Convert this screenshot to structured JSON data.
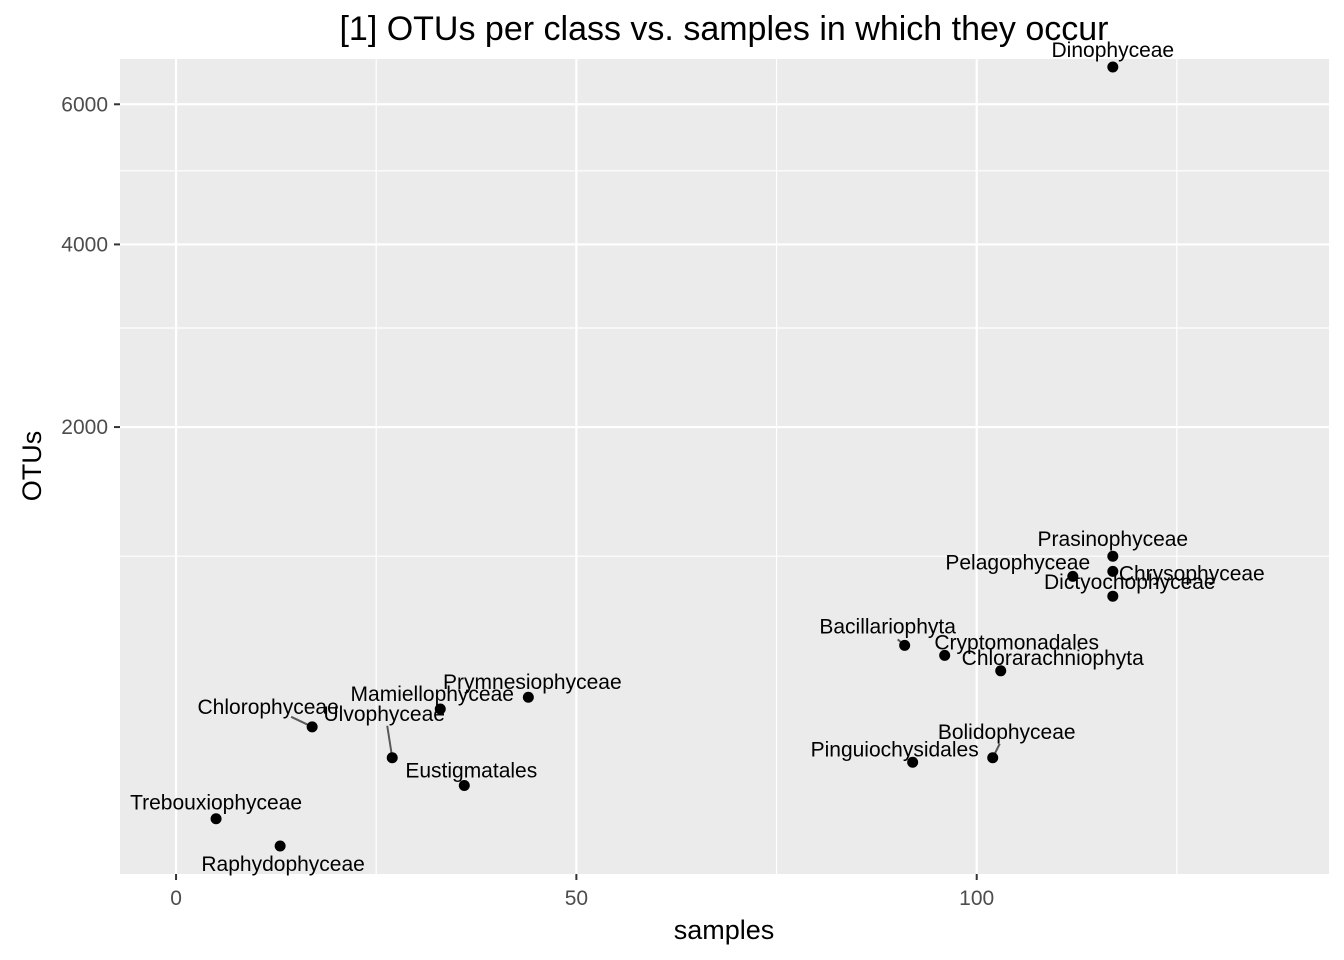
{
  "chart_data": {
    "type": "scatter",
    "title": "[1] OTUs per class vs. samples in which they occur",
    "xlabel": "samples",
    "ylabel": "OTUs",
    "x_ticks": [
      0,
      50,
      100
    ],
    "y_ticks": [
      2000,
      4000,
      6000
    ],
    "x_range": [
      -7,
      144
    ],
    "y_scale": "sqrt",
    "y_range": [
      0,
      8000
    ],
    "grid": true,
    "points": [
      {
        "name": "Dinophyceae",
        "x": 117,
        "y": 6600
      },
      {
        "name": "Prasinophyceae",
        "x": 117,
        "y": 1000
      },
      {
        "name": "Chrysophyceae",
        "x": 117,
        "y": 905
      },
      {
        "name": "Pelagophyceae",
        "x": 112,
        "y": 875
      },
      {
        "name": "Dictyochophyceae",
        "x": 117,
        "y": 760
      },
      {
        "name": "Bacillariophyta",
        "x": 91,
        "y": 510
      },
      {
        "name": "Cryptomonadales",
        "x": 96,
        "y": 465
      },
      {
        "name": "Chlorarachniophyta",
        "x": 103,
        "y": 400
      },
      {
        "name": "Prymnesiophyceae",
        "x": 44,
        "y": 300
      },
      {
        "name": "Mamiellophyceae",
        "x": 33,
        "y": 260
      },
      {
        "name": "Chlorophyceae",
        "x": 17,
        "y": 205
      },
      {
        "name": "Ulvophyceae",
        "x": 27,
        "y": 125
      },
      {
        "name": "Bolidophyceae",
        "x": 102,
        "y": 125
      },
      {
        "name": "Pinguiochysidales",
        "x": 92,
        "y": 115
      },
      {
        "name": "Eustigmatales",
        "x": 36,
        "y": 70
      },
      {
        "name": "Trebouxiophyceae",
        "x": 5,
        "y": 25
      },
      {
        "name": "Raphydophyceae",
        "x": 13,
        "y": 5
      }
    ]
  }
}
